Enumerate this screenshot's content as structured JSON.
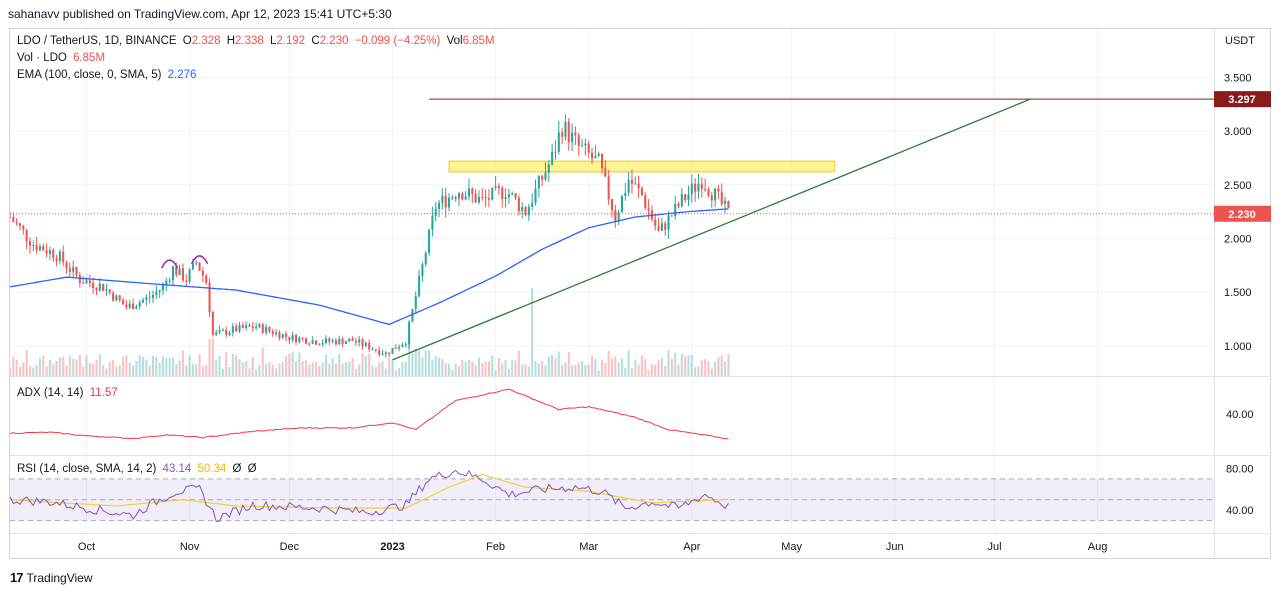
{
  "publisher": "sahanavv published on TradingView.com, Apr 12, 2023 15:41 UTC+5:30",
  "header": {
    "symbol": "LDO / TetherUS, 1D, BINANCE",
    "o_label": "O",
    "o_value": "2.328",
    "h_label": "H",
    "h_value": "2.338",
    "l_label": "L",
    "l_value": "2.192",
    "c_label": "C",
    "c_value": "2.230",
    "change": "−0.099 (−4.25%)",
    "vol_label": "Vol",
    "vol_value": "6.85M"
  },
  "vol_legend": {
    "label": "Vol · LDO",
    "value": "6.85M"
  },
  "ema_legend": {
    "label": "EMA (100, close, 0, SMA, 5)",
    "value": "2.276"
  },
  "adx_legend": {
    "label": "ADX (14, 14)",
    "value": "11.57"
  },
  "rsi_legend": {
    "label": "RSI (14, close, SMA, 14, 2)",
    "v1": "43.14",
    "v2": "50.34",
    "v3": "Ø",
    "v4": "Ø"
  },
  "footer": {
    "brand": "TradingView"
  },
  "colors": {
    "up": "#26a69a",
    "down": "#ef5350",
    "ema": "#2962ff",
    "adx": "#f23645",
    "rsi": "#7e57c2",
    "rsi_ma": "#f0d13a",
    "trendline": "#2e7d32",
    "resistance": "#8b1a1a",
    "zone": "#ffeb3b"
  },
  "chart_data": [
    {
      "type": "candlestick",
      "pane": "price",
      "axis_unit": "USDT",
      "y_ticks": [
        "3.500",
        "3.000",
        "2.500",
        "2.000",
        "1.500",
        "1.000"
      ],
      "ylim": [
        0.72,
        3.95
      ],
      "x_ticks": [
        "Oct",
        "Nov",
        "Dec",
        "2023",
        "Feb",
        "Mar",
        "Apr",
        "May",
        "Jun",
        "Jul",
        "Aug"
      ],
      "x_tick_dates": [
        "2022-10-01",
        "2022-11-01",
        "2022-12-01",
        "2023-01-01",
        "2023-02-01",
        "2023-03-01",
        "2023-04-01",
        "2023-05-01",
        "2023-06-01",
        "2023-07-01",
        "2023-08-01"
      ],
      "xlim": [
        "2022-09-08",
        "2023-09-05"
      ],
      "close_anchors": [
        [
          "2022-09-08",
          2.2
        ],
        [
          "2022-09-15",
          1.95
        ],
        [
          "2022-09-22",
          1.85
        ],
        [
          "2022-09-29",
          1.62
        ],
        [
          "2022-10-06",
          1.55
        ],
        [
          "2022-10-13",
          1.36
        ],
        [
          "2022-10-20",
          1.45
        ],
        [
          "2022-10-24",
          1.55
        ],
        [
          "2022-10-27",
          1.72
        ],
        [
          "2022-10-31",
          1.62
        ],
        [
          "2022-11-03",
          1.78
        ],
        [
          "2022-11-06",
          1.6
        ],
        [
          "2022-11-08",
          1.1
        ],
        [
          "2022-11-14",
          1.15
        ],
        [
          "2022-11-21",
          1.18
        ],
        [
          "2022-12-01",
          1.08
        ],
        [
          "2022-12-10",
          1.04
        ],
        [
          "2022-12-20",
          1.05
        ],
        [
          "2022-12-30",
          0.93
        ],
        [
          "2023-01-05",
          1.05
        ],
        [
          "2023-01-09",
          1.6
        ],
        [
          "2023-01-14",
          2.3
        ],
        [
          "2023-01-21",
          2.45
        ],
        [
          "2023-01-28",
          2.35
        ],
        [
          "2023-02-04",
          2.45
        ],
        [
          "2023-02-10",
          2.25
        ],
        [
          "2023-02-18",
          2.75
        ],
        [
          "2023-02-21",
          3.05
        ],
        [
          "2023-02-26",
          2.85
        ],
        [
          "2023-03-04",
          2.7
        ],
        [
          "2023-03-09",
          2.2
        ],
        [
          "2023-03-13",
          2.55
        ],
        [
          "2023-03-17",
          2.4
        ],
        [
          "2023-03-22",
          2.05
        ],
        [
          "2023-03-29",
          2.35
        ],
        [
          "2023-04-04",
          2.55
        ],
        [
          "2023-04-08",
          2.4
        ],
        [
          "2023-04-12",
          2.23
        ]
      ],
      "last_price": "2.230",
      "resistance": {
        "value": "3.297",
        "from": "2023-01-12",
        "to": "2023-09-01"
      },
      "resistance_zone": {
        "low": 2.62,
        "high": 2.72,
        "from": "2023-01-18",
        "to": "2023-05-14"
      },
      "trendline": {
        "from": [
          "2023-01-01",
          0.87
        ],
        "to": [
          "2023-07-12",
          3.3
        ]
      },
      "ema100_anchors": [
        [
          "2022-09-08",
          1.55
        ],
        [
          "2022-09-25",
          1.64
        ],
        [
          "2022-10-20",
          1.58
        ],
        [
          "2022-11-15",
          1.52
        ],
        [
          "2022-12-10",
          1.38
        ],
        [
          "2022-12-31",
          1.2
        ],
        [
          "2023-01-15",
          1.4
        ],
        [
          "2023-02-01",
          1.65
        ],
        [
          "2023-02-15",
          1.9
        ],
        [
          "2023-03-01",
          2.1
        ],
        [
          "2023-03-15",
          2.2
        ],
        [
          "2023-03-31",
          2.25
        ],
        [
          "2023-04-12",
          2.276
        ]
      ],
      "volume_spike": [
        "2023-02-12",
        "large"
      ]
    },
    {
      "type": "line",
      "pane": "ADX",
      "series": [
        {
          "name": "ADX (14, 14)",
          "last": 11.57
        }
      ],
      "y_ticks": [
        "40.00"
      ],
      "anchors": [
        [
          "2022-09-08",
          18
        ],
        [
          "2022-09-20",
          19
        ],
        [
          "2022-10-01",
          15
        ],
        [
          "2022-10-15",
          12
        ],
        [
          "2022-10-25",
          16
        ],
        [
          "2022-11-05",
          13
        ],
        [
          "2022-11-20",
          20
        ],
        [
          "2022-12-05",
          24
        ],
        [
          "2022-12-20",
          24
        ],
        [
          "2023-01-01",
          30
        ],
        [
          "2023-01-08",
          22
        ],
        [
          "2023-01-20",
          55
        ],
        [
          "2023-02-05",
          68
        ],
        [
          "2023-02-20",
          45
        ],
        [
          "2023-03-01",
          48
        ],
        [
          "2023-03-15",
          36
        ],
        [
          "2023-03-25",
          22
        ],
        [
          "2023-04-12",
          11.57
        ]
      ]
    },
    {
      "type": "line",
      "pane": "RSI",
      "series": [
        {
          "name": "RSI",
          "last": 43.14
        },
        {
          "name": "SMA",
          "last": 50.34
        }
      ],
      "y_ticks": [
        "80.00",
        "40.00"
      ],
      "bands": [
        70,
        30
      ],
      "midline": 50,
      "rsi_anchors": [
        [
          "2022-09-08",
          50
        ],
        [
          "2022-09-20",
          48
        ],
        [
          "2022-10-05",
          40
        ],
        [
          "2022-10-15",
          35
        ],
        [
          "2022-10-20",
          45
        ],
        [
          "2022-10-28",
          58
        ],
        [
          "2022-11-04",
          60
        ],
        [
          "2022-11-09",
          32
        ],
        [
          "2022-11-20",
          45
        ],
        [
          "2022-12-10",
          42
        ],
        [
          "2022-12-25",
          38
        ],
        [
          "2023-01-05",
          45
        ],
        [
          "2023-01-12",
          70
        ],
        [
          "2023-01-20",
          78
        ],
        [
          "2023-01-28",
          70
        ],
        [
          "2023-02-05",
          55
        ],
        [
          "2023-02-15",
          60
        ],
        [
          "2023-02-25",
          62
        ],
        [
          "2023-03-05",
          58
        ],
        [
          "2023-03-12",
          42
        ],
        [
          "2023-03-20",
          48
        ],
        [
          "2023-03-28",
          42
        ],
        [
          "2023-04-05",
          55
        ],
        [
          "2023-04-12",
          43.14
        ]
      ],
      "sma_anchors": [
        [
          "2022-09-08",
          50
        ],
        [
          "2022-10-10",
          44
        ],
        [
          "2022-10-30",
          50
        ],
        [
          "2022-11-15",
          44
        ],
        [
          "2022-12-15",
          42
        ],
        [
          "2023-01-05",
          42
        ],
        [
          "2023-01-18",
          62
        ],
        [
          "2023-01-28",
          74
        ],
        [
          "2023-02-10",
          62
        ],
        [
          "2023-03-01",
          58
        ],
        [
          "2023-03-20",
          47
        ],
        [
          "2023-04-12",
          50.34
        ]
      ]
    }
  ]
}
